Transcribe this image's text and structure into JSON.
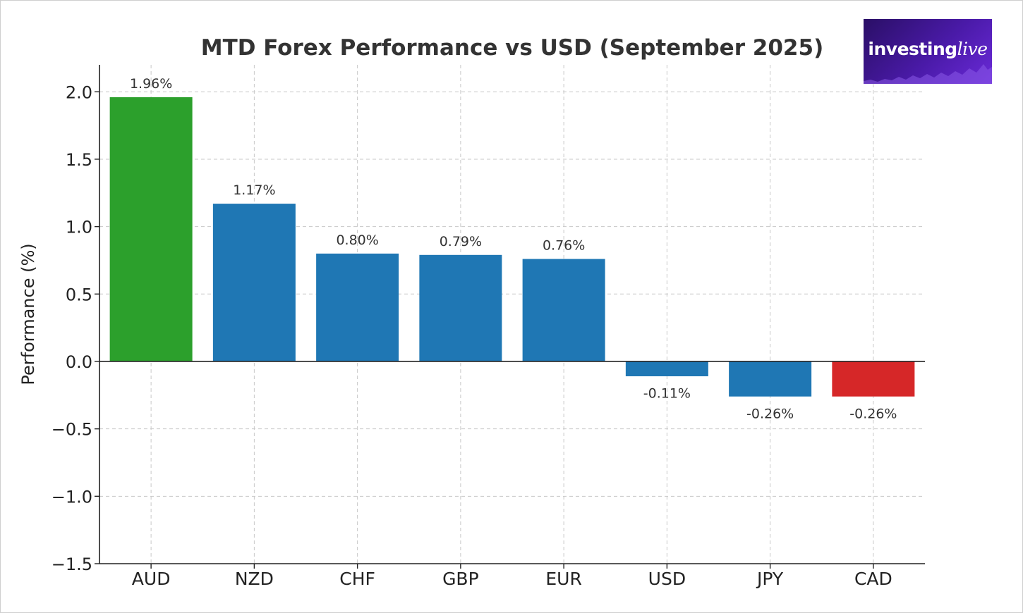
{
  "logo": {
    "text_bold": "investing",
    "text_italic": "live",
    "bg_color": "#3b1590"
  },
  "chart_data": {
    "type": "bar",
    "title": "MTD Forex Performance vs USD (September 2025)",
    "xlabel": "",
    "ylabel": "Performance (%)",
    "ylim": [
      -1.5,
      2.2
    ],
    "yticks": [
      2.0,
      1.5,
      1.0,
      0.5,
      0.0,
      -0.5,
      -1.0,
      -1.5
    ],
    "ytick_labels": [
      "2.0",
      "1.5",
      "1.0",
      "0.5",
      "0.0",
      "−0.5",
      "−1.0",
      "−1.5"
    ],
    "grid": true,
    "categories": [
      "AUD",
      "NZD",
      "CHF",
      "GBP",
      "EUR",
      "USD",
      "JPY",
      "CAD"
    ],
    "values": [
      1.96,
      1.17,
      0.8,
      0.79,
      0.76,
      -0.11,
      -0.26,
      -0.26
    ],
    "data_labels": [
      "1.96%",
      "1.17%",
      "0.80%",
      "0.79%",
      "0.76%",
      "-0.11%",
      "-0.26%",
      "-0.26%"
    ],
    "colors": [
      "#2ca02c",
      "#1f77b4",
      "#1f77b4",
      "#1f77b4",
      "#1f77b4",
      "#1f77b4",
      "#1f77b4",
      "#d62728"
    ]
  }
}
